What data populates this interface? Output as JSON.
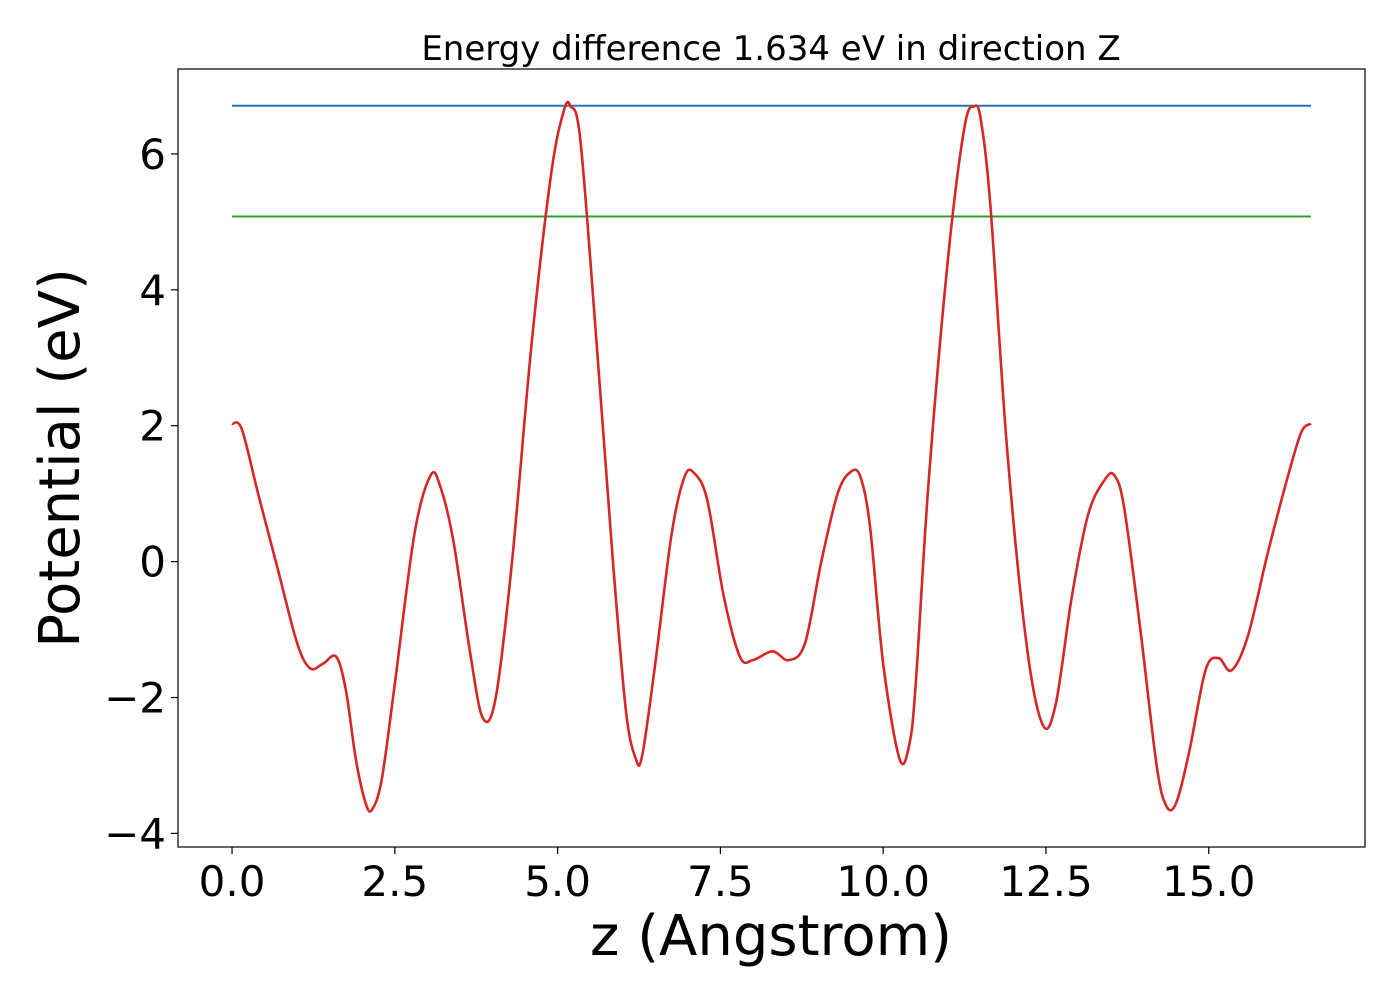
{
  "chart_data": {
    "type": "line",
    "title": "Energy difference 1.634 eV in direction Z",
    "xlabel": "z (Angstrom)",
    "ylabel": "Potential (eV)",
    "xlim": [
      -0.83,
      17.4
    ],
    "ylim": [
      -4.2,
      7.25
    ],
    "xticks": [
      {
        "value": 0.0,
        "label": "0.0"
      },
      {
        "value": 2.5,
        "label": "2.5"
      },
      {
        "value": 5.0,
        "label": "5.0"
      },
      {
        "value": 7.5,
        "label": "7.5"
      },
      {
        "value": 10.0,
        "label": "10.0"
      },
      {
        "value": 12.5,
        "label": "12.5"
      },
      {
        "value": 15.0,
        "label": "15.0"
      }
    ],
    "yticks": [
      {
        "value": -4,
        "label": "−4"
      },
      {
        "value": -2,
        "label": "−2"
      },
      {
        "value": 0,
        "label": "0"
      },
      {
        "value": 2,
        "label": "2"
      },
      {
        "value": 4,
        "label": "4"
      },
      {
        "value": 6,
        "label": "6"
      }
    ],
    "grid": false,
    "series": [
      {
        "color": "#1f77b4",
        "x": [
          0.0,
          16.57
        ],
        "y": [
          6.71,
          6.71
        ]
      },
      {
        "color": "#2ca02c",
        "x": [
          0.0,
          16.57
        ],
        "y": [
          5.08,
          5.08
        ]
      },
      {
        "color": "#d62728",
        "x": [
          0.0,
          0.15,
          0.4,
          0.7,
          1.0,
          1.2,
          1.4,
          1.6,
          1.75,
          1.9,
          2.05,
          2.15,
          2.3,
          2.5,
          2.8,
          3.05,
          3.2,
          3.4,
          3.65,
          3.85,
          4.05,
          4.3,
          4.6,
          4.9,
          5.1,
          5.2,
          5.35,
          5.6,
          5.85,
          6.05,
          6.2,
          6.3,
          6.5,
          6.75,
          6.95,
          7.1,
          7.3,
          7.55,
          7.8,
          8.0,
          8.3,
          8.55,
          8.8,
          9.05,
          9.3,
          9.5,
          9.65,
          9.8,
          10.0,
          10.25,
          10.4,
          10.5,
          10.7,
          11.0,
          11.25,
          11.4,
          11.5,
          11.65,
          11.9,
          12.2,
          12.45,
          12.65,
          12.9,
          13.15,
          13.4,
          13.55,
          13.7,
          13.95,
          14.2,
          14.35,
          14.5,
          14.7,
          14.95,
          15.15,
          15.35,
          15.6,
          15.9,
          16.2,
          16.42,
          16.57
        ],
        "y": [
          2.03,
          1.95,
          1.0,
          -0.1,
          -1.2,
          -1.57,
          -1.5,
          -1.4,
          -1.9,
          -2.9,
          -3.55,
          -3.65,
          -3.2,
          -1.8,
          0.4,
          1.27,
          1.1,
          0.3,
          -1.3,
          -2.3,
          -2.0,
          0.0,
          3.2,
          5.7,
          6.65,
          6.7,
          6.2,
          3.2,
          0.0,
          -2.2,
          -2.9,
          -2.85,
          -1.5,
          0.4,
          1.25,
          1.3,
          0.9,
          -0.5,
          -1.4,
          -1.45,
          -1.32,
          -1.45,
          -1.2,
          0.0,
          1.0,
          1.32,
          1.25,
          0.5,
          -1.5,
          -2.9,
          -2.7,
          -1.8,
          1.2,
          4.5,
          6.4,
          6.7,
          6.5,
          5.2,
          1.7,
          -1.2,
          -2.4,
          -2.1,
          -0.5,
          0.7,
          1.2,
          1.27,
          0.8,
          -1.0,
          -3.0,
          -3.6,
          -3.55,
          -2.8,
          -1.6,
          -1.42,
          -1.6,
          -1.1,
          0.1,
          1.2,
          1.9,
          2.03
        ]
      }
    ]
  }
}
